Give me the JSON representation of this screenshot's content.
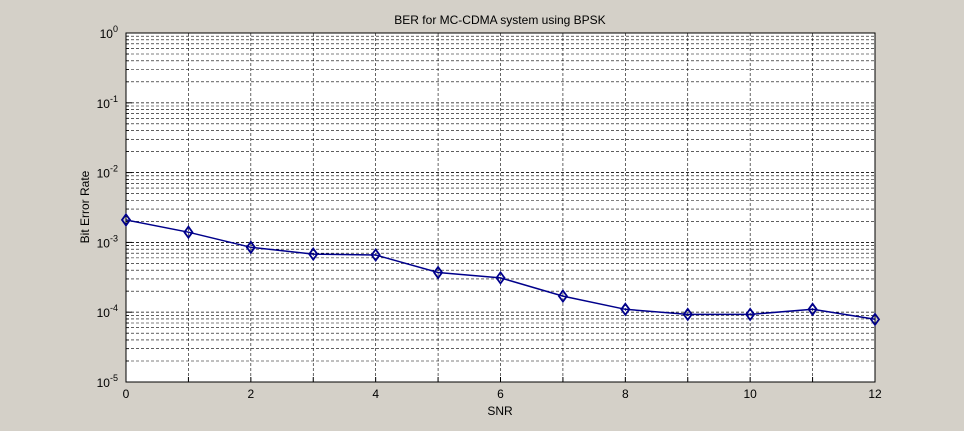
{
  "chart_data": {
    "type": "line",
    "title": "BER for MC-CDMA system using BPSK",
    "xlabel": "SNR",
    "ylabel": "Bit Error Rate",
    "xlim": [
      0,
      12
    ],
    "ylim": [
      1e-05,
      1
    ],
    "yscale": "log",
    "grid": true,
    "x_ticks": [
      "0",
      "2",
      "4",
      "6",
      "8",
      "10",
      "12"
    ],
    "y_ticks": [
      {
        "base": "10",
        "exp": "0"
      },
      {
        "base": "10",
        "exp": "-1"
      },
      {
        "base": "10",
        "exp": "-2"
      },
      {
        "base": "10",
        "exp": "-3"
      },
      {
        "base": "10",
        "exp": "-4"
      },
      {
        "base": "10",
        "exp": "-5"
      }
    ],
    "series": [
      {
        "marker": "diamond",
        "color": "#00008b",
        "x": [
          0,
          1,
          2,
          3,
          4,
          5,
          6,
          7,
          8,
          9,
          10,
          11,
          12
        ],
        "y": [
          0.0021,
          0.0014,
          0.00085,
          0.00068,
          0.00066,
          0.00037,
          0.00031,
          0.00017,
          0.00011,
          9.3e-05,
          9.3e-05,
          0.00011,
          7.9e-05
        ]
      }
    ]
  },
  "colors": {
    "figure_background": "#d4d0c8",
    "axes_background": "#ffffff",
    "line": "#00008b"
  }
}
